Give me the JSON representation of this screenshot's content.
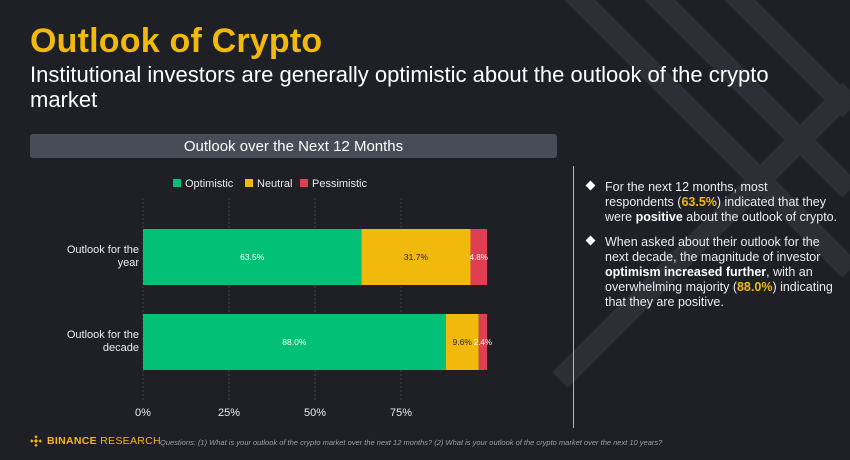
{
  "header": {
    "title": "Outlook of Crypto",
    "subtitle": "Institutional investors are generally optimistic about the outlook of the crypto market"
  },
  "chart_data": {
    "type": "bar",
    "orientation": "horizontal",
    "stacked": true,
    "title": "Outlook over the Next 12 Months",
    "categories": [
      "Outlook for the year",
      "Outlook for the decade"
    ],
    "series": [
      {
        "name": "Optimistic",
        "color": "#02c076",
        "values": [
          63.5,
          88.0
        ],
        "labels": [
          "63.5%",
          "88.0%"
        ]
      },
      {
        "name": "Neutral",
        "color": "#f0b90b",
        "values": [
          31.7,
          9.6
        ],
        "labels": [
          "31.7%",
          "9.6%"
        ]
      },
      {
        "name": "Pessimistic",
        "color": "#e03e52",
        "values": [
          4.8,
          2.4
        ],
        "labels": [
          "4.8%",
          "2.4%"
        ]
      }
    ],
    "xlim": [
      0,
      100
    ],
    "xticks": [
      0,
      25,
      50,
      75
    ],
    "xtick_labels": [
      "0%",
      "25%",
      "50%",
      "75%"
    ],
    "grid": true,
    "legend_position": "top"
  },
  "commentary": {
    "bullets": [
      {
        "p1": "For the next 12 months, most respondents (",
        "hl": "63.5%",
        "p2": ") indicated that they were ",
        "strong": "positive",
        "p3": " about the outlook of crypto."
      },
      {
        "p1": "When asked about their outlook for the next decade, the magnitude of investor ",
        "strong": "optimism increased further",
        "p2": ", with an overwhelming majority (",
        "hl": "88.0%",
        "p3": ") indicating that they are positive."
      }
    ]
  },
  "footer": {
    "logo_brand": "BINANCE",
    "logo_suffix": " RESEARCH",
    "note": "Questions: (1) What is your outlook of the crypto market over the next 12 months? (2) What is your outlook of the crypto market over the next 10 years?"
  },
  "colors": {
    "accent": "#f0b90b",
    "background": "#1e2026",
    "banner": "#474d57"
  }
}
